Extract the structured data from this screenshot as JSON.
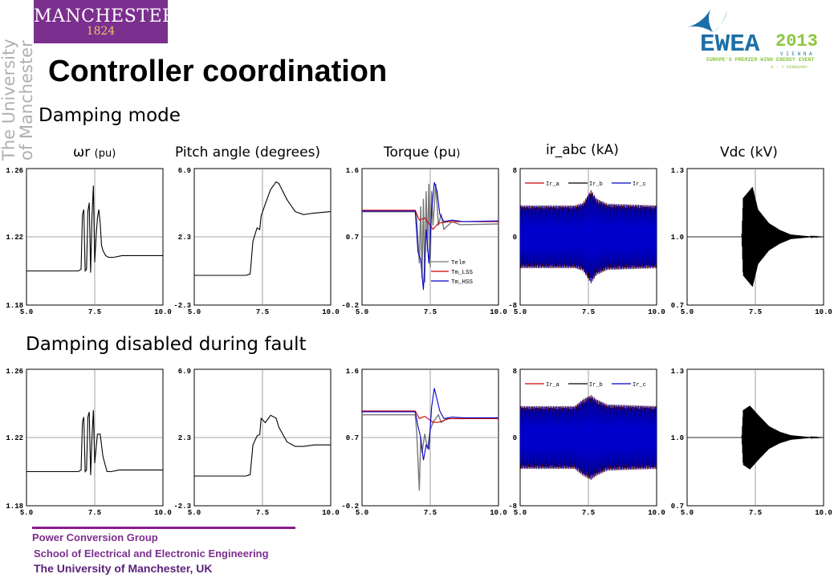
{
  "logo": {
    "name": "MANCHESTER",
    "year": "1824"
  },
  "side_text": [
    "The University",
    "of Manchester"
  ],
  "title": "Controller coordination",
  "ewea": {
    "name": "EWEA",
    "year": "2013",
    "city": "V I E N N A",
    "tagline": "EUROPE'S PREMIER WIND ENERGY EVENT",
    "dates": "4 - 7 FEBRUARY"
  },
  "sections": {
    "top": "Damping mode",
    "bottom": "Damping disabled during fault"
  },
  "column_labels": {
    "c1_symbol": "ωr",
    "c1_unit": "(pu)",
    "c2": "Pitch angle (degrees)",
    "c3_main": "Torque (pu",
    "c3_close": ")",
    "c4": "ir_abc (kA)",
    "c5": "Vdc (kV)"
  },
  "footer": {
    "line1": "Power Conversion Group",
    "line2": "School of Electrical and Electronic Engineering",
    "line3": "The University  of Manchester,  UK"
  },
  "colors": {
    "purple": "#7b2f8e",
    "gold": "#e9c56a",
    "ewea_blue": "#1c6fa8",
    "ewea_green": "#8dc63f"
  },
  "chart_data": [
    {
      "type": "line",
      "row": "top",
      "xlim": [
        5.0,
        10.0
      ],
      "ylim": [
        1.18,
        1.26
      ],
      "x_ticks": [
        "5.0",
        "7.5",
        "10.0"
      ],
      "y_ticks": [
        "1.18",
        "1.22",
        "1.26"
      ],
      "series": [
        {
          "x": [
            5.0,
            6.9,
            7.0,
            7.05,
            7.1,
            7.15,
            7.2,
            7.25,
            7.3,
            7.35,
            7.4,
            7.45,
            7.5,
            7.55,
            7.6,
            7.65,
            7.7,
            7.75,
            7.8,
            7.9,
            8.0,
            8.2,
            8.5,
            10.0
          ],
          "y": [
            1.2,
            1.2,
            1.201,
            1.233,
            1.236,
            1.2,
            1.201,
            1.235,
            1.24,
            1.199,
            1.232,
            1.25,
            1.205,
            1.22,
            1.231,
            1.236,
            1.228,
            1.215,
            1.212,
            1.209,
            1.208,
            1.208,
            1.209,
            1.209
          ],
          "color": "#000000"
        }
      ]
    },
    {
      "type": "line",
      "row": "top",
      "xlim": [
        5.0,
        10.0
      ],
      "ylim": [
        -2.3,
        6.9
      ],
      "x_ticks": [
        "5.0",
        "7.5",
        "10.0"
      ],
      "y_ticks": [
        "-2.3",
        "2.3",
        "6.9"
      ],
      "series": [
        {
          "x": [
            5.0,
            6.9,
            7.05,
            7.15,
            7.3,
            7.4,
            7.45,
            7.6,
            7.8,
            8.0,
            8.1,
            8.4,
            8.7,
            9.0,
            9.4,
            10.0
          ],
          "y": [
            -0.3,
            -0.3,
            -0.2,
            2.0,
            2.9,
            2.8,
            3.7,
            4.5,
            5.5,
            6.0,
            5.9,
            4.8,
            4.0,
            3.8,
            3.9,
            4.0
          ],
          "color": "#000000"
        }
      ]
    },
    {
      "type": "line",
      "row": "top",
      "xlim": [
        5.0,
        10.0
      ],
      "ylim": [
        -0.2,
        1.6
      ],
      "x_ticks": [
        "5.0",
        "7.5",
        "10.0"
      ],
      "y_ticks": [
        "-0.2",
        "0.7",
        "1.6"
      ],
      "series": [
        {
          "name": "Tele",
          "x": [
            5.0,
            6.95,
            7.0,
            7.1,
            7.15,
            7.2,
            7.25,
            7.3,
            7.35,
            7.4,
            7.45,
            7.5,
            7.55,
            7.6,
            7.7,
            7.8,
            7.9,
            8.0,
            8.3,
            8.6,
            10.0
          ],
          "y": [
            1.03,
            1.03,
            0.98,
            0.35,
            1.1,
            0.15,
            1.2,
            0.1,
            1.3,
            0.5,
            1.4,
            0.3,
            1.3,
            0.85,
            1.4,
            0.85,
            1.0,
            0.8,
            0.9,
            0.86,
            0.87
          ],
          "color": "#777777"
        },
        {
          "name": "Tm_LSS",
          "x": [
            5.0,
            6.95,
            7.1,
            7.3,
            7.6,
            7.8,
            8.2,
            8.6,
            10.0
          ],
          "y": [
            1.05,
            1.05,
            0.92,
            0.95,
            0.8,
            0.88,
            0.9,
            0.9,
            0.9
          ],
          "color": "#cc0000"
        },
        {
          "name": "Tm_HSS",
          "x": [
            5.0,
            6.95,
            7.05,
            7.15,
            7.25,
            7.35,
            7.45,
            7.55,
            7.65,
            7.75,
            7.85,
            8.0,
            8.3,
            8.7,
            10.0
          ],
          "y": [
            1.04,
            1.04,
            0.5,
            0.4,
            0.0,
            0.8,
            0.35,
            1.05,
            1.42,
            1.3,
            1.0,
            0.9,
            0.92,
            0.9,
            0.91
          ],
          "color": "#0000cc"
        }
      ]
    },
    {
      "type": "line",
      "row": "top",
      "xlim": [
        5.0,
        10.0
      ],
      "ylim": [
        -8,
        8
      ],
      "x_ticks": [
        "5.0",
        "7.5",
        "10.0"
      ],
      "y_ticks": [
        "-8",
        "0",
        "8"
      ],
      "series": [
        {
          "name": "Ir_a",
          "color": "#cc0000"
        },
        {
          "name": "Ir_b",
          "color": "#000000"
        },
        {
          "name": "Ir_c",
          "color": "#0000cc"
        }
      ],
      "envelope": {
        "x": [
          5.0,
          7.0,
          7.3,
          7.6,
          7.8,
          8.2,
          10.0
        ],
        "amp": [
          3.7,
          3.7,
          4.0,
          5.5,
          4.5,
          3.9,
          3.7
        ]
      }
    },
    {
      "type": "line",
      "row": "top",
      "xlim": [
        5.0,
        10.0
      ],
      "ylim": [
        0.7,
        1.3
      ],
      "x_ticks": [
        "5.0",
        "7.5",
        "10.0"
      ],
      "y_ticks": [
        "0.7",
        "1.0",
        "1.3"
      ],
      "series": [
        {
          "x": [
            5.0,
            7.0,
            10.0
          ],
          "y": [
            1.0,
            1.0,
            1.0
          ],
          "color": "#000000"
        }
      ],
      "envelope": {
        "x": [
          5.0,
          7.0,
          7.05,
          7.4,
          7.6,
          8.0,
          8.4,
          8.8,
          9.5,
          10.0
        ],
        "amp": [
          0,
          0,
          0.17,
          0.22,
          0.12,
          0.06,
          0.03,
          0.01,
          0.002,
          0
        ]
      }
    },
    {
      "type": "line",
      "row": "bottom",
      "xlim": [
        5.0,
        10.0
      ],
      "ylim": [
        1.18,
        1.26
      ],
      "x_ticks": [
        "5.0",
        "7.5",
        "10.0"
      ],
      "y_ticks": [
        "1.18",
        "1.22",
        "1.26"
      ],
      "series": [
        {
          "x": [
            5.0,
            6.9,
            7.0,
            7.05,
            7.1,
            7.15,
            7.2,
            7.25,
            7.3,
            7.35,
            7.4,
            7.45,
            7.5,
            7.6,
            7.7,
            7.8,
            7.95,
            8.1,
            8.4,
            10.0
          ],
          "y": [
            1.2,
            1.2,
            1.201,
            1.229,
            1.232,
            1.2,
            1.201,
            1.232,
            1.235,
            1.198,
            1.22,
            1.236,
            1.205,
            1.222,
            1.222,
            1.209,
            1.2,
            1.2,
            1.201,
            1.201
          ],
          "color": "#000000"
        }
      ]
    },
    {
      "type": "line",
      "row": "bottom",
      "xlim": [
        5.0,
        10.0
      ],
      "ylim": [
        -2.3,
        6.9
      ],
      "x_ticks": [
        "5.0",
        "7.5",
        "10.0"
      ],
      "y_ticks": [
        "-2.3",
        "2.3",
        "6.9"
      ],
      "series": [
        {
          "x": [
            5.0,
            6.9,
            7.05,
            7.15,
            7.3,
            7.4,
            7.45,
            7.6,
            7.8,
            8.0,
            8.1,
            8.4,
            8.7,
            9.0,
            9.4,
            10.0
          ],
          "y": [
            -0.3,
            -0.3,
            -0.2,
            1.8,
            2.4,
            2.5,
            3.6,
            3.3,
            3.8,
            3.6,
            3.0,
            2.0,
            1.7,
            1.7,
            1.8,
            1.8
          ],
          "color": "#000000"
        }
      ]
    },
    {
      "type": "line",
      "row": "bottom",
      "xlim": [
        5.0,
        10.0
      ],
      "ylim": [
        -0.2,
        1.6
      ],
      "x_ticks": [
        "5.0",
        "7.5",
        "10.0"
      ],
      "y_ticks": [
        "-0.2",
        "0.7",
        "1.6"
      ],
      "series": [
        {
          "name": "Tele",
          "x": [
            5.0,
            6.95,
            7.0,
            7.1,
            7.15,
            7.2,
            7.3,
            7.4,
            7.5,
            7.6,
            7.7,
            7.8,
            7.9,
            8.1,
            8.4,
            10.0
          ],
          "y": [
            1.0,
            1.0,
            0.8,
            0.0,
            0.7,
            0.5,
            0.75,
            0.55,
            0.8,
            0.9,
            0.95,
            1.0,
            0.9,
            0.95,
            0.95,
            0.95
          ],
          "color": "#777777"
        },
        {
          "name": "Tm_LSS",
          "x": [
            5.0,
            6.95,
            7.1,
            7.3,
            7.6,
            7.8,
            8.2,
            8.6,
            10.0
          ],
          "y": [
            1.05,
            1.05,
            0.95,
            0.98,
            0.9,
            0.9,
            0.95,
            0.95,
            0.95
          ],
          "color": "#cc0000"
        },
        {
          "name": "Tm_HSS",
          "x": [
            5.0,
            6.95,
            7.05,
            7.15,
            7.25,
            7.35,
            7.45,
            7.55,
            7.65,
            7.75,
            7.85,
            8.0,
            8.3,
            8.7,
            10.0
          ],
          "y": [
            1.04,
            1.04,
            0.85,
            0.7,
            0.4,
            0.6,
            0.55,
            1.1,
            1.35,
            1.2,
            1.05,
            0.95,
            0.97,
            0.96,
            0.96
          ],
          "color": "#0000cc"
        }
      ]
    },
    {
      "type": "line",
      "row": "bottom",
      "xlim": [
        5.0,
        10.0
      ],
      "ylim": [
        -8,
        8
      ],
      "x_ticks": [
        "5.0",
        "7.5",
        "10.0"
      ],
      "y_ticks": [
        "-8",
        "0",
        "8"
      ],
      "series": [
        {
          "name": "Ir_a",
          "color": "#cc0000"
        },
        {
          "name": "Ir_b",
          "color": "#000000"
        },
        {
          "name": "Ir_c",
          "color": "#0000cc"
        }
      ],
      "envelope": {
        "x": [
          5.0,
          7.0,
          7.3,
          7.6,
          7.8,
          8.2,
          10.0
        ],
        "amp": [
          3.7,
          3.7,
          4.5,
          5.0,
          4.5,
          3.9,
          3.7
        ]
      }
    },
    {
      "type": "line",
      "row": "bottom",
      "xlim": [
        5.0,
        10.0
      ],
      "ylim": [
        0.7,
        1.3
      ],
      "x_ticks": [
        "5.0",
        "7.5",
        "10.0"
      ],
      "y_ticks": [
        "0.7",
        "1.0",
        "1.3"
      ],
      "series": [
        {
          "x": [
            5.0,
            7.0,
            10.0
          ],
          "y": [
            1.0,
            1.0,
            1.0
          ],
          "color": "#000000"
        }
      ],
      "envelope": {
        "x": [
          5.0,
          7.0,
          7.05,
          7.3,
          7.6,
          8.0,
          8.4,
          8.8,
          9.5,
          10.0
        ],
        "amp": [
          0,
          0,
          0.12,
          0.14,
          0.1,
          0.05,
          0.025,
          0.01,
          0.002,
          0
        ]
      }
    }
  ]
}
